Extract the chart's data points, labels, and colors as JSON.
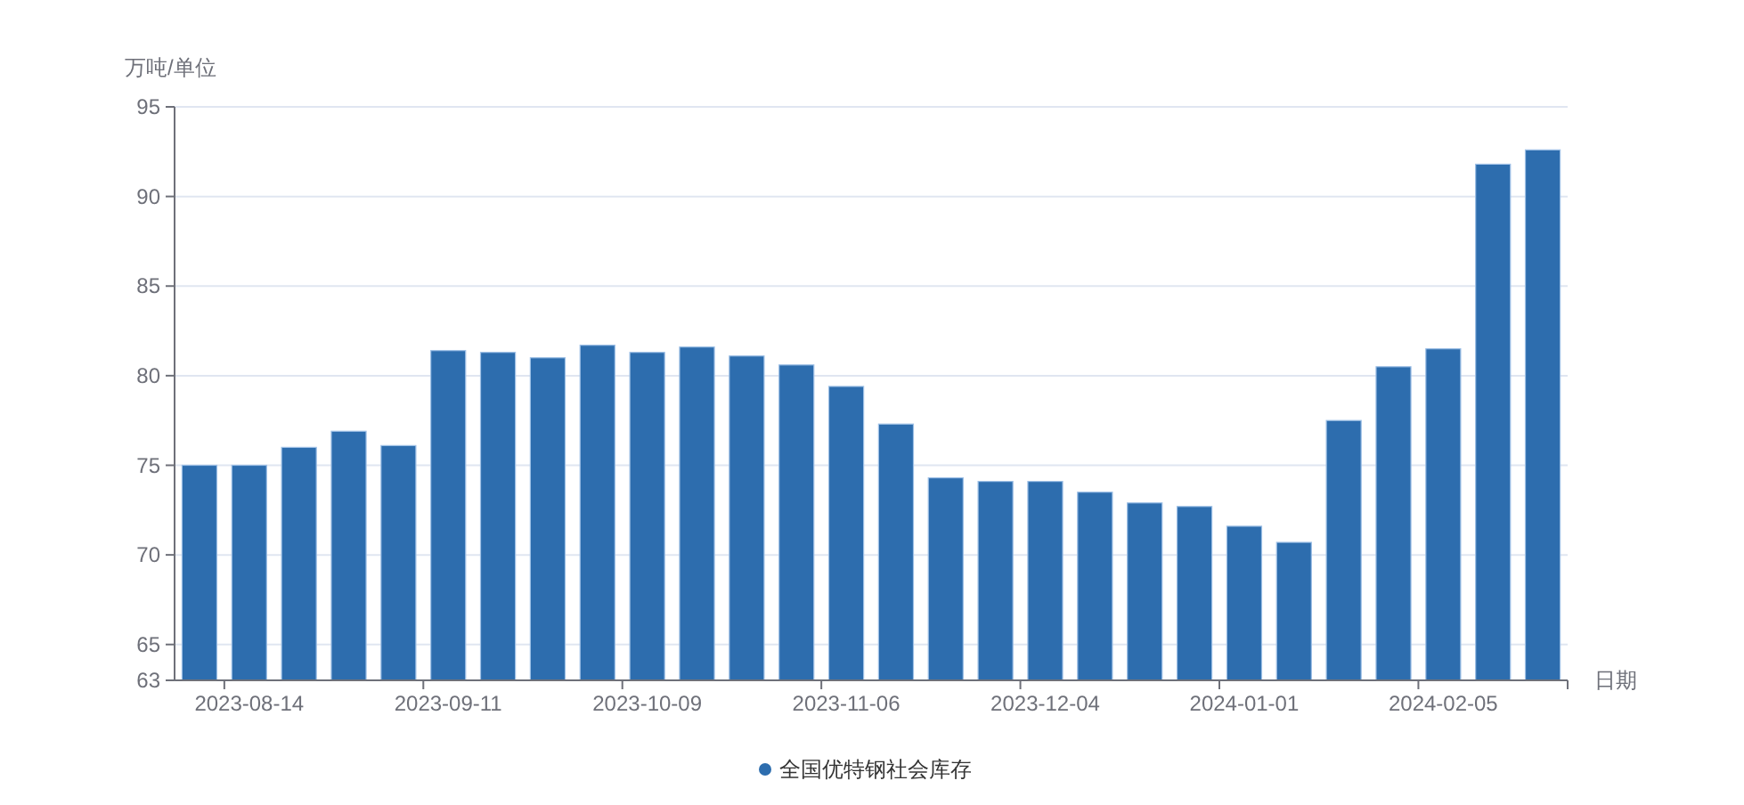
{
  "chart_data": {
    "type": "bar",
    "ylabel": "万吨/单位",
    "xlabel": "日期",
    "categories": [
      null,
      "2023-08-14",
      null,
      null,
      null,
      "2023-09-11",
      null,
      null,
      null,
      "2023-10-09",
      null,
      null,
      null,
      "2023-11-06",
      null,
      null,
      null,
      "2023-12-04",
      null,
      null,
      null,
      "2024-01-01",
      null,
      null,
      null,
      "2024-02-05",
      null,
      null
    ],
    "series": [
      {
        "name": "全国优特钢社会库存",
        "color": "#2d6dae",
        "values": [
          75.0,
          75.0,
          76.0,
          76.9,
          76.1,
          81.4,
          81.3,
          81.0,
          81.7,
          81.3,
          81.6,
          81.1,
          80.6,
          79.4,
          77.3,
          74.3,
          74.1,
          74.1,
          73.5,
          72.9,
          72.7,
          71.6,
          70.7,
          77.5,
          80.5,
          81.5,
          91.8,
          92.6
        ]
      }
    ],
    "ylim": [
      63,
      95
    ],
    "yticks": [
      63,
      65,
      70,
      75,
      80,
      85,
      90,
      95
    ],
    "grid": "y",
    "legend": "bottom"
  }
}
